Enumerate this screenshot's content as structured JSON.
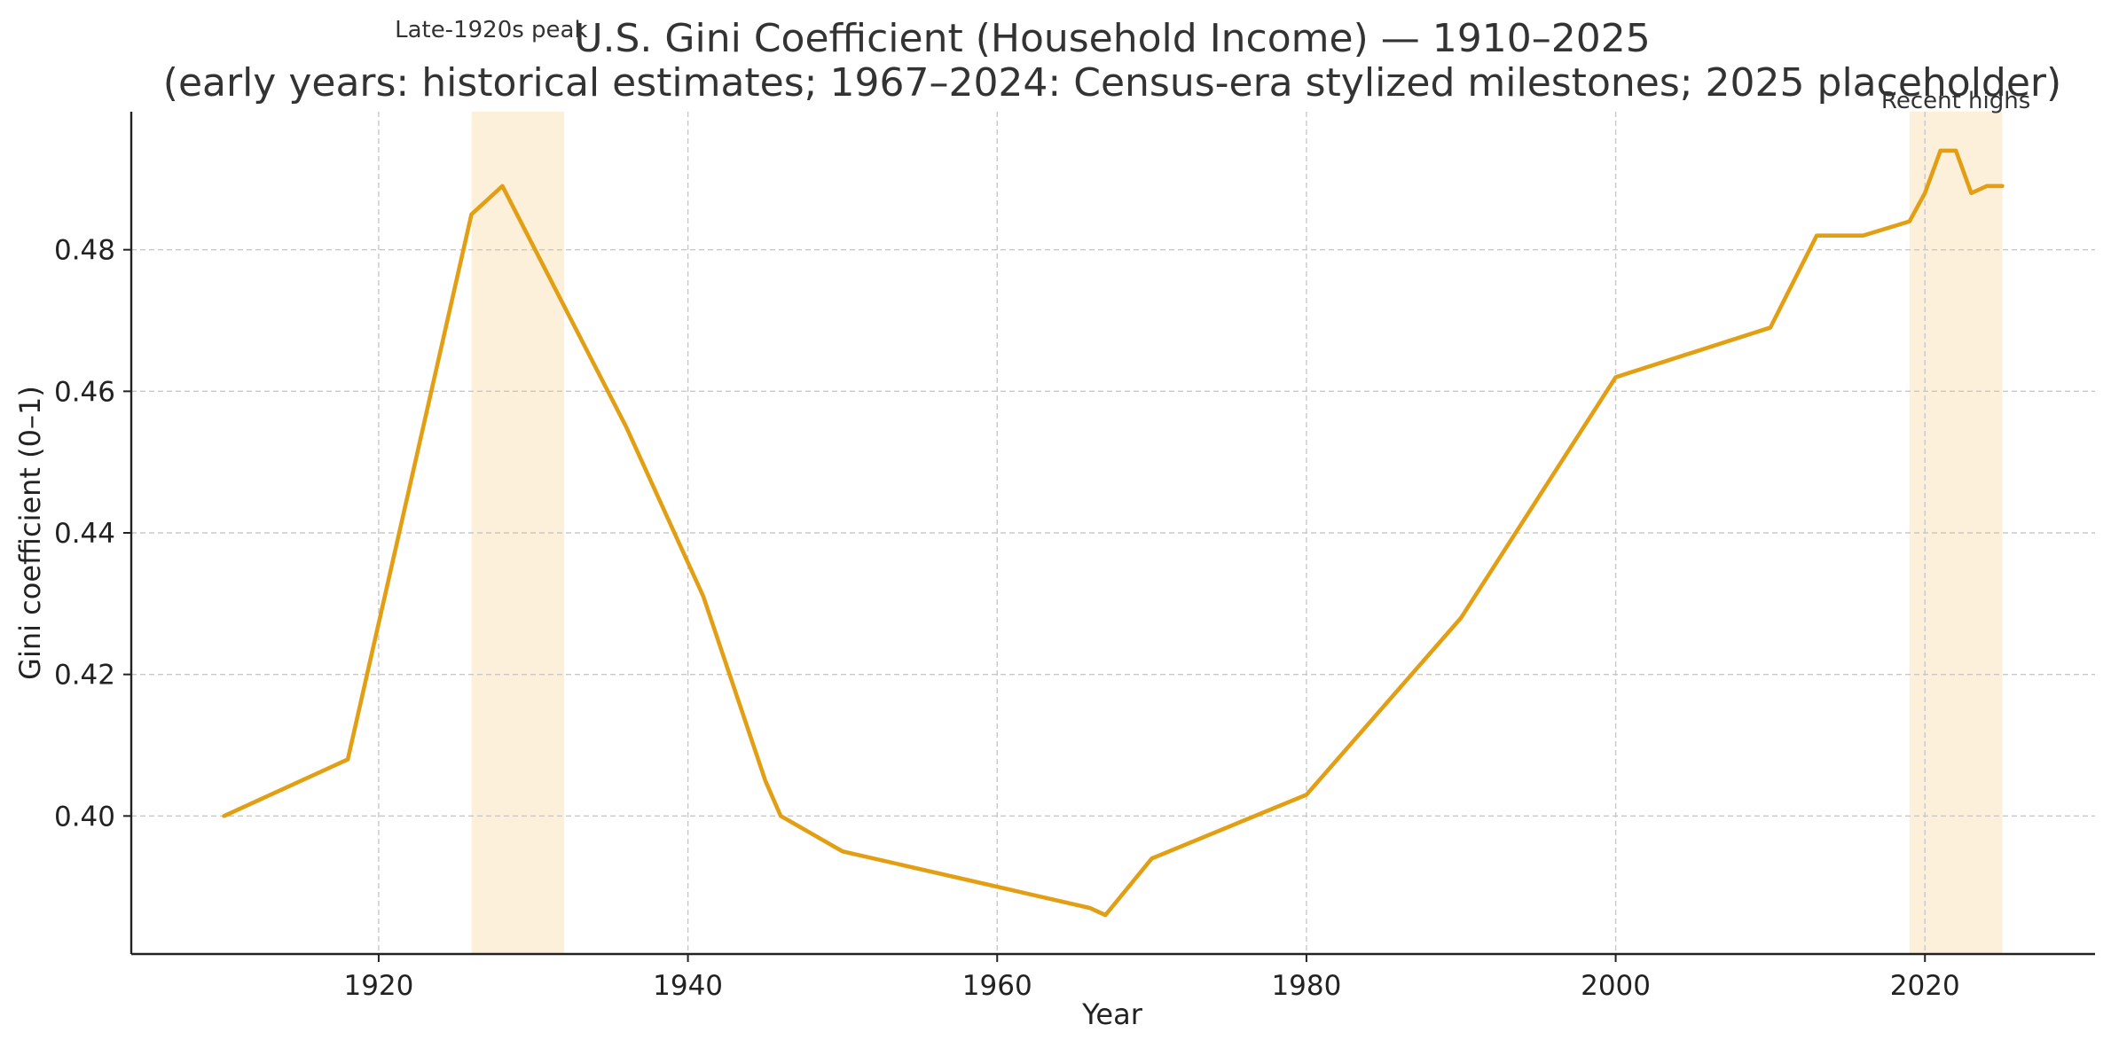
{
  "chart_data": {
    "type": "line",
    "title": "U.S. Gini Coefficient (Household Income) — 1910–2025",
    "subtitle": "(early years: historical estimates; 1967–2024: Census-era stylized milestones; 2025 placeholder)",
    "xlabel": "Year",
    "ylabel": "Gini coefficient (0–1)",
    "xlim": [
      1904,
      2031
    ],
    "ylim": [
      0.3805,
      0.4995
    ],
    "xticks": [
      1920,
      1940,
      1960,
      1980,
      2000,
      2020
    ],
    "yticks": [
      0.4,
      0.42,
      0.44,
      0.46,
      0.48
    ],
    "ytick_labels": [
      "0.40",
      "0.42",
      "0.44",
      "0.46",
      "0.48"
    ],
    "grid": true,
    "line_color": "#E39F14",
    "band_color": "#FCF0DA",
    "series": [
      {
        "x": [
          1910,
          1918,
          1926,
          1928,
          1936,
          1941,
          1945,
          1946,
          1950,
          1966,
          1967,
          1970,
          1980,
          1990,
          2000,
          2010,
          2013,
          2016,
          2019,
          2020,
          2021,
          2022,
          2023,
          2024,
          2025
        ],
        "y": [
          0.4,
          0.408,
          0.485,
          0.489,
          0.455,
          0.431,
          0.405,
          0.4,
          0.395,
          0.387,
          0.386,
          0.394,
          0.403,
          0.428,
          0.462,
          0.469,
          0.482,
          0.482,
          0.484,
          0.488,
          0.494,
          0.494,
          0.488,
          0.489,
          0.489
        ]
      }
    ],
    "annotations": [
      {
        "text": "Late-1920s peak",
        "band": [
          1926,
          1932
        ]
      },
      {
        "text": "Recent highs",
        "band": [
          2019,
          2025
        ]
      }
    ]
  }
}
